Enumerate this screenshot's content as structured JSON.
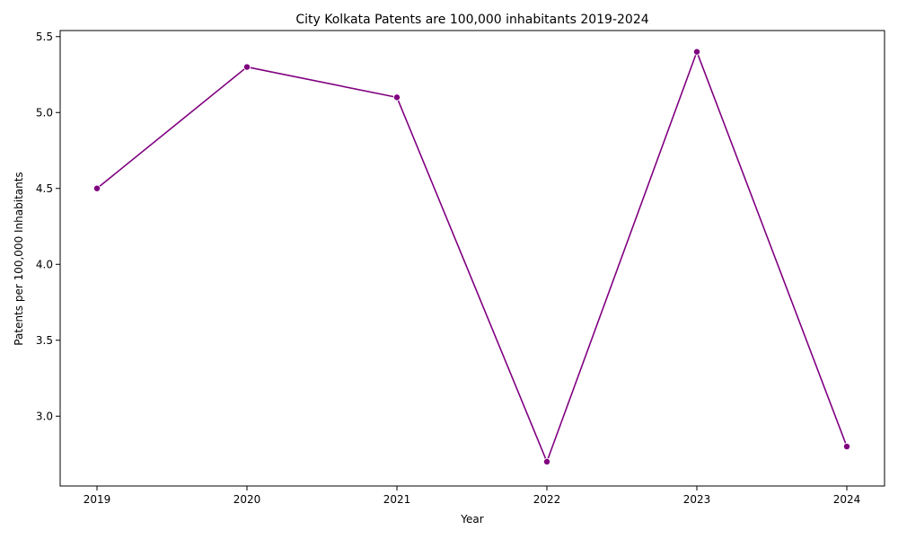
{
  "chart_data": {
    "type": "line",
    "title": "City Kolkata Patents are 100,000 inhabitants 2019-2024",
    "xlabel": "Year",
    "ylabel": "Patents per 100,000 Inhabitants",
    "categories": [
      "2019",
      "2020",
      "2021",
      "2022",
      "2023",
      "2024"
    ],
    "series": [
      {
        "values": [
          4.5,
          5.3,
          5.1,
          2.7,
          5.4,
          2.8
        ]
      }
    ],
    "ylim": [
      2.54,
      5.54
    ],
    "yticks": [
      "3.0",
      "3.5",
      "4.0",
      "4.5",
      "5.0",
      "5.5"
    ],
    "grid": false,
    "legend": "none",
    "line_color": "#800080",
    "marker": "circle"
  }
}
